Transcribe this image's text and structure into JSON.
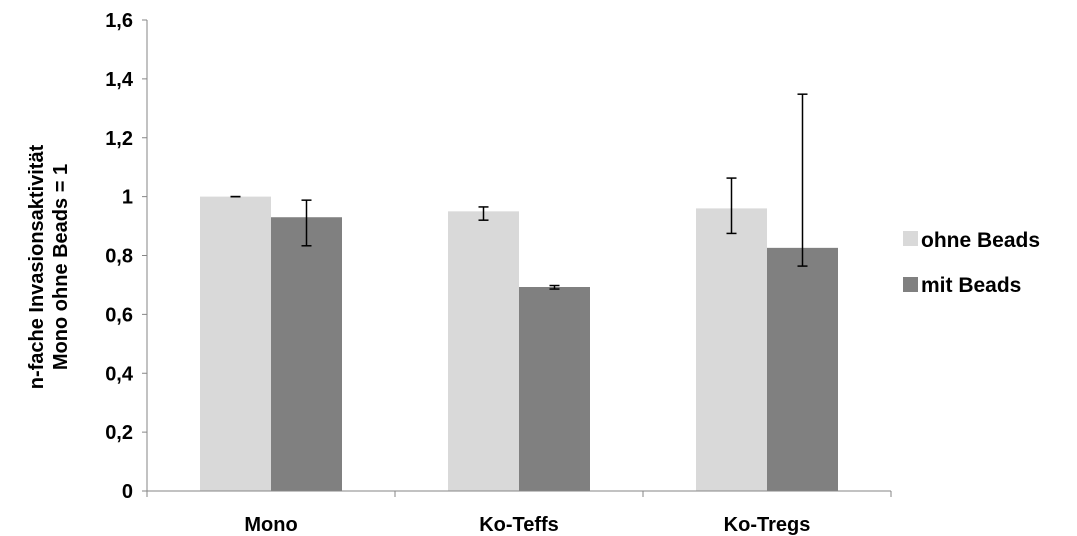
{
  "chart_data": {
    "type": "bar",
    "title": "",
    "xlabel": "",
    "ylabel_lines": [
      "n-fache Invasionsaktivität",
      "Mono ohne Beads = 1"
    ],
    "categories": [
      "Mono",
      "Ko-Teffs",
      "Ko-Tregs"
    ],
    "series": [
      {
        "name": "ohne Beads",
        "color": "#d9d9d9",
        "values": [
          1.0,
          0.95,
          0.96
        ],
        "error_low": [
          1.0,
          0.92,
          0.875
        ],
        "error_high": [
          1.0,
          0.965,
          1.063
        ]
      },
      {
        "name": "mit Beads",
        "color": "#808080",
        "values": [
          0.93,
          0.693,
          0.826
        ],
        "error_low": [
          0.833,
          0.686,
          0.764
        ],
        "error_high": [
          0.988,
          0.698,
          1.348
        ]
      }
    ],
    "ylim": [
      0,
      1.6
    ],
    "yticks": [
      {
        "value": 0,
        "label": "0"
      },
      {
        "value": 0.2,
        "label": "0,2"
      },
      {
        "value": 0.4,
        "label": "0,4"
      },
      {
        "value": 0.6,
        "label": "0,6"
      },
      {
        "value": 0.8,
        "label": "0,8"
      },
      {
        "value": 1.0,
        "label": "1"
      },
      {
        "value": 1.2,
        "label": "1,2"
      },
      {
        "value": 1.4,
        "label": "1,4"
      },
      {
        "value": 1.6,
        "label": "1,6"
      }
    ],
    "grid": false,
    "legend_position": "right"
  }
}
